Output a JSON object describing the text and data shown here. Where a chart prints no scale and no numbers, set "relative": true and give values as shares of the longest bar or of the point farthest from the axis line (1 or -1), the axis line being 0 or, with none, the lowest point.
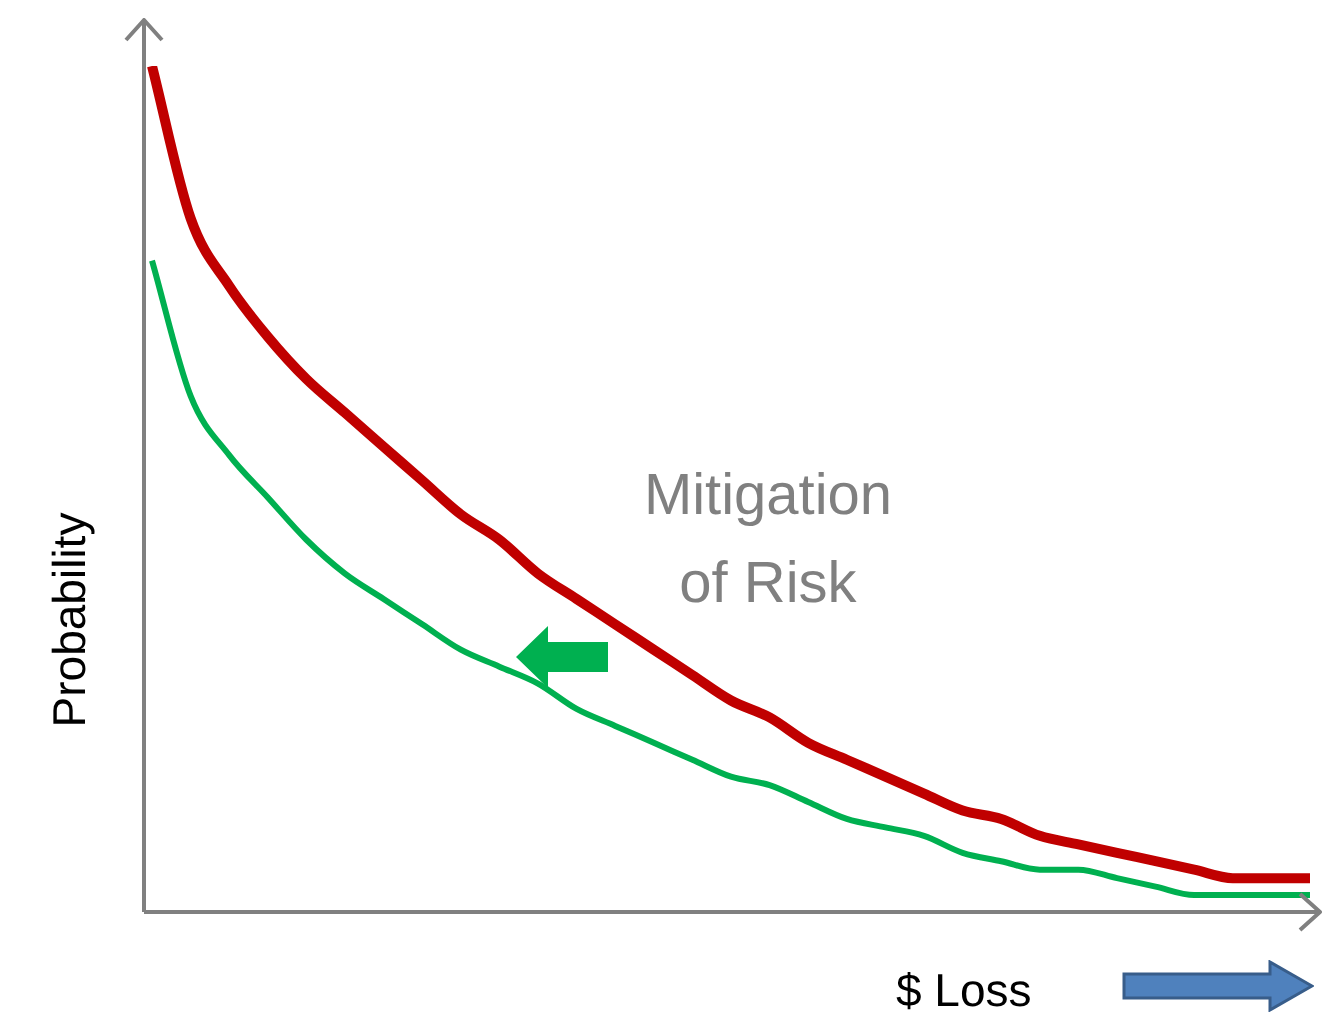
{
  "chart_data": {
    "type": "line",
    "relative": true,
    "xlabel": "$ Loss",
    "ylabel": "Probability",
    "annotations": [
      "Mitigation\nof Risk"
    ],
    "categories": [
      null,
      null,
      null,
      null,
      null,
      null,
      null,
      null,
      null,
      null,
      null,
      null,
      null,
      null,
      null,
      null,
      null,
      null,
      null,
      null,
      null,
      null,
      null,
      null,
      null,
      null,
      null,
      null,
      null,
      null,
      null
    ],
    "series": [
      {
        "color": "#c00000",
        "values": [
          1,
          0.82,
          0.74,
          0.68,
          0.63,
          0.59,
          0.55,
          0.51,
          0.47,
          0.44,
          0.4,
          0.37,
          0.34,
          0.31,
          0.28,
          0.25,
          0.23,
          0.2,
          0.18,
          0.16,
          0.14,
          0.12,
          0.11,
          0.09,
          0.08,
          0.07,
          0.06,
          0.05,
          0.04,
          0.04,
          0.04
        ]
      },
      {
        "color": "#00b050",
        "values": [
          0.77,
          0.61,
          0.54,
          0.49,
          0.44,
          0.4,
          0.37,
          0.34,
          0.31,
          0.29,
          0.27,
          0.24,
          0.22,
          0.2,
          0.18,
          0.16,
          0.15,
          0.13,
          0.11,
          0.1,
          0.09,
          0.07,
          0.06,
          0.05,
          0.05,
          0.04,
          0.03,
          0.02,
          0.02,
          0.02,
          0.02
        ]
      }
    ]
  }
}
